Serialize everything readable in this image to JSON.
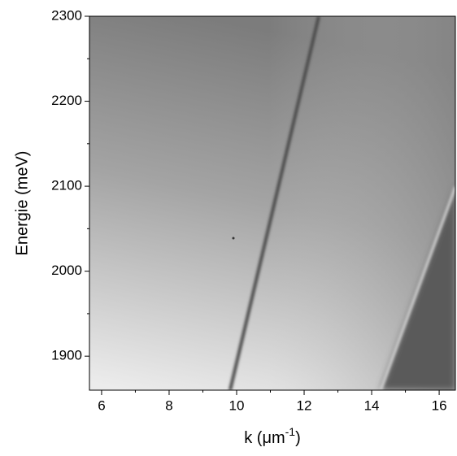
{
  "chart_data": {
    "type": "image",
    "x_label": {
      "text": "k (μm",
      "superscript": "-1",
      "close": ")"
    },
    "y_label": "Energie (meV)",
    "xlim": [
      5.64,
      16.48
    ],
    "xticks": [
      6,
      8,
      10,
      12,
      14,
      16
    ],
    "xminor": [
      7,
      9,
      11,
      13,
      15
    ],
    "ylim": [
      1860,
      2300
    ],
    "yticks": [
      1900,
      2000,
      2100,
      2200,
      2300
    ],
    "yminor": [
      1950,
      2050,
      2150,
      2250
    ]
  }
}
